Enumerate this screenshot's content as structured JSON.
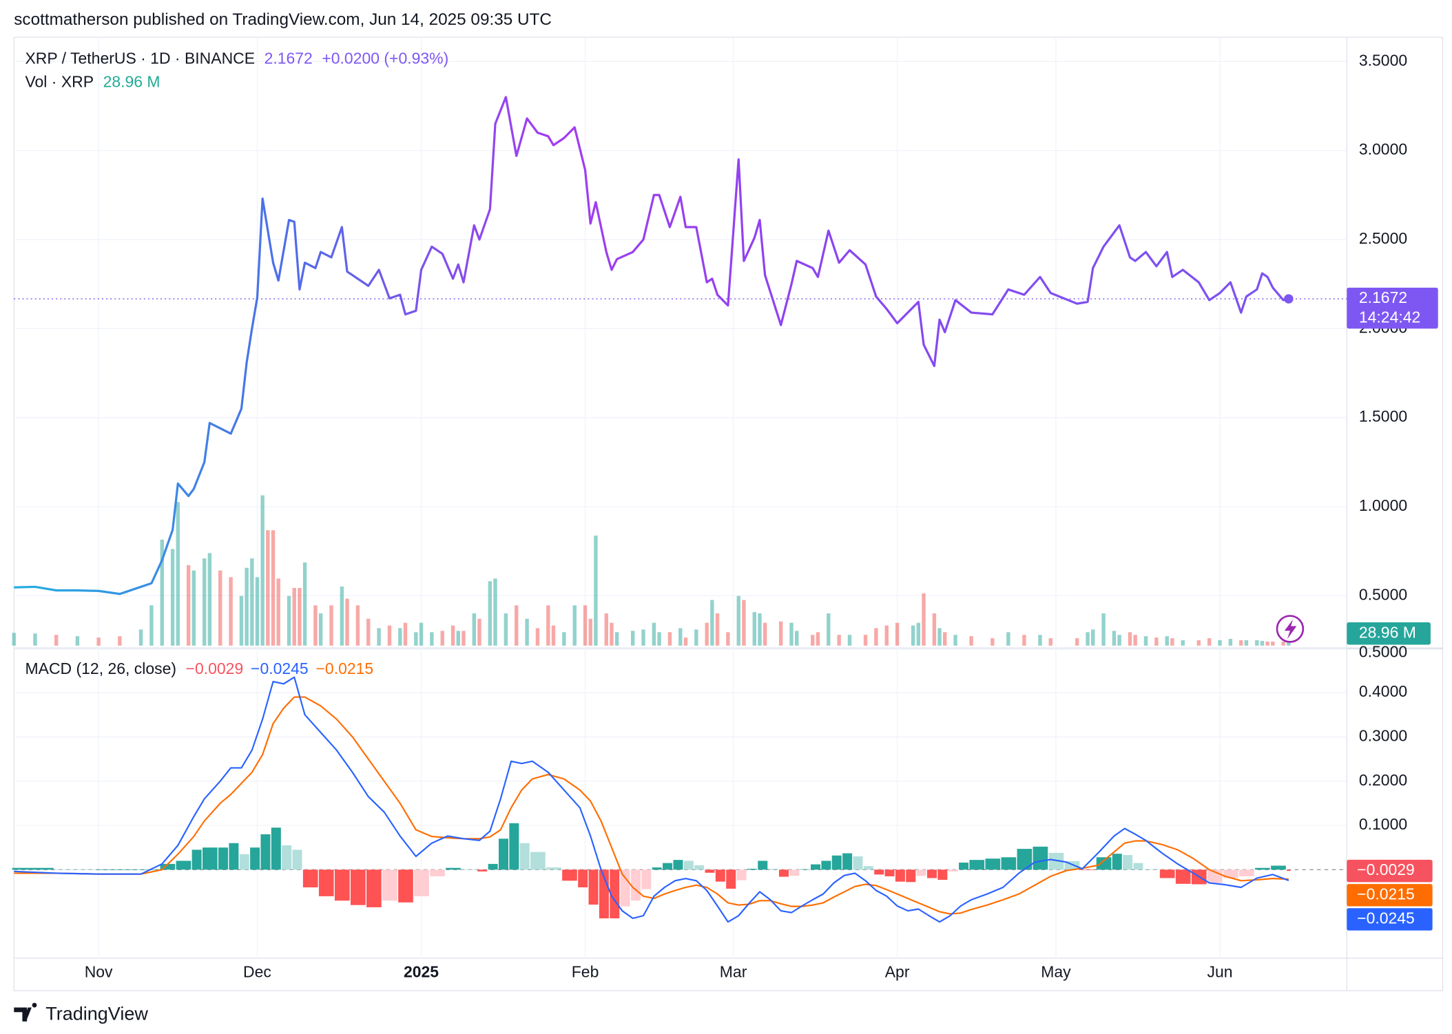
{
  "header": "scottmatherson published on TradingView.com, Jun 14, 2025 09:35 UTC",
  "footer": "TradingView",
  "chart_data": [
    {
      "type": "line",
      "title": "XRP / TetherUS · 1D · BINANCE",
      "last_label": "2.1672",
      "change_label": "+0.0200 (+0.93%)",
      "countdown": "14:24:42",
      "ylim": [
        0.22,
        3.61
      ],
      "yticks": [
        {
          "value": 0.5,
          "label": "0.5000"
        },
        {
          "value": 1,
          "label": "1.0000"
        },
        {
          "value": 1.5,
          "label": "1.5000"
        },
        {
          "value": 2,
          "label": "2.0000"
        },
        {
          "value": 2.5,
          "label": "2.5000"
        },
        {
          "value": 3,
          "label": "3.0000"
        },
        {
          "value": 3.5,
          "label": "3.5000"
        }
      ],
      "grid": true,
      "x": [
        -16,
        -12,
        -8,
        -4,
        0,
        4,
        8,
        10,
        12,
        14,
        15,
        17,
        18,
        20,
        21,
        23,
        25,
        27,
        28,
        29,
        30,
        31,
        32,
        33,
        34,
        36,
        37,
        38,
        39,
        41,
        42,
        44,
        46,
        47,
        49,
        51,
        53,
        55,
        57,
        58,
        60,
        61,
        63,
        65,
        67,
        68,
        69,
        71,
        72,
        74,
        75,
        77,
        79,
        81,
        83,
        85,
        86,
        88,
        90,
        92,
        93,
        94,
        96,
        97,
        98,
        101,
        103,
        105,
        106,
        108,
        110,
        111,
        113,
        115,
        116,
        117,
        119,
        121,
        122,
        124,
        125,
        126,
        129,
        131,
        132,
        135,
        136,
        138,
        140,
        142,
        145,
        147,
        149,
        151,
        154,
        155,
        156,
        158,
        159,
        160,
        162,
        165,
        169,
        172,
        175,
        178,
        180,
        185,
        187,
        188,
        190,
        192,
        193,
        195,
        196,
        198,
        200,
        202,
        203,
        205,
        208,
        210,
        212,
        214,
        216,
        217,
        219,
        220,
        221,
        222,
        224,
        225
      ],
      "series": [
        {
          "colors": [
            "#23aee0",
            "#4d6fe8",
            "#a23cf0",
            "#8c44f0",
            "#7f4ff0",
            "#7b52f2"
          ],
          "values": [
            0.547,
            0.55,
            0.53,
            0.53,
            0.527,
            0.51,
            0.55,
            0.57,
            0.7,
            0.87,
            1.13,
            1.06,
            1.1,
            1.25,
            1.47,
            1.44,
            1.41,
            1.55,
            1.81,
            2.0,
            2.175,
            2.73,
            2.55,
            2.37,
            2.27,
            2.61,
            2.6,
            2.22,
            2.37,
            2.34,
            2.43,
            2.4,
            2.57,
            2.32,
            2.28,
            2.24,
            2.33,
            2.17,
            2.19,
            2.08,
            2.1,
            2.33,
            2.46,
            2.42,
            2.28,
            2.36,
            2.26,
            2.58,
            2.5,
            2.67,
            3.15,
            3.3,
            2.97,
            3.18,
            3.1,
            3.08,
            3.03,
            3.07,
            3.13,
            2.89,
            2.59,
            2.71,
            2.43,
            2.33,
            2.39,
            2.43,
            2.5,
            2.75,
            2.75,
            2.57,
            2.74,
            2.57,
            2.57,
            2.26,
            2.28,
            2.19,
            2.13,
            2.95,
            2.38,
            2.51,
            2.61,
            2.3,
            2.02,
            2.25,
            2.38,
            2.34,
            2.29,
            2.55,
            2.37,
            2.44,
            2.36,
            2.18,
            2.11,
            2.03,
            2.12,
            2.15,
            1.91,
            1.79,
            2.05,
            1.98,
            2.16,
            2.09,
            2.08,
            2.22,
            2.19,
            2.29,
            2.2,
            2.14,
            2.15,
            2.34,
            2.46,
            2.54,
            2.58,
            2.4,
            2.38,
            2.43,
            2.35,
            2.43,
            2.29,
            2.33,
            2.26,
            2.16,
            2.2,
            2.26,
            2.09,
            2.18,
            2.22,
            2.31,
            2.29,
            2.23,
            2.16,
            2.1672
          ]
        }
      ],
      "volume": {
        "name": "Vol · XRP",
        "value_label": "28.96 M",
        "color_up": "#26a69a",
        "color_down": "#ef5350",
        "ylim": [
          0,
          4500
        ],
        "values": [
          95,
          90,
          80,
          70,
          60,
          70,
          120,
          300,
          790,
          720,
          1070,
          600,
          560,
          650,
          690,
          560,
          510,
          370,
          580,
          650,
          510,
          1120,
          860,
          860,
          500,
          370,
          430,
          430,
          620,
          300,
          240,
          300,
          440,
          350,
          300,
          200,
          130,
          150,
          130,
          170,
          100,
          170,
          100,
          110,
          150,
          110,
          110,
          240,
          200,
          480,
          500,
          240,
          300,
          200,
          130,
          300,
          150,
          100,
          300,
          300,
          200,
          820,
          240,
          170,
          100,
          110,
          120,
          170,
          100,
          100,
          130,
          60,
          120,
          170,
          340,
          240,
          100,
          370,
          340,
          250,
          240,
          170,
          180,
          170,
          110,
          80,
          100,
          240,
          80,
          80,
          80,
          130,
          150,
          170,
          150,
          170,
          390,
          240,
          130,
          100,
          80,
          70,
          55,
          100,
          80,
          80,
          55,
          55,
          100,
          120,
          240,
          110,
          80,
          100,
          80,
          70,
          60,
          70,
          55,
          40,
          40,
          55,
          40,
          50,
          40,
          40,
          40,
          35,
          30,
          30,
          30,
          28.96
        ]
      }
    },
    {
      "type": "macd",
      "title": "MACD (12, 26, close)",
      "xlim": [
        -16,
        236
      ],
      "xticks": [
        {
          "value": 0,
          "label": "Nov"
        },
        {
          "value": 30,
          "label": "Dec"
        },
        {
          "value": 61,
          "label": "2025"
        },
        {
          "value": 92,
          "label": "Feb"
        },
        {
          "value": 120,
          "label": "Mar"
        },
        {
          "value": 151,
          "label": "Apr"
        },
        {
          "value": 181,
          "label": "May"
        },
        {
          "value": 212,
          "label": "Jun"
        }
      ],
      "ylim": [
        -0.2,
        0.5
      ],
      "yticks": [
        {
          "value": 0.1,
          "label": "0.1000"
        },
        {
          "value": 0.2,
          "label": "0.2000"
        },
        {
          "value": 0.3,
          "label": "0.3000"
        },
        {
          "value": 0.4,
          "label": "0.4000"
        },
        {
          "value": 0.5,
          "label": "0.5000"
        }
      ],
      "grid": true,
      "x": [
        -16,
        -8,
        0,
        8,
        12,
        15,
        18,
        20,
        23,
        25,
        27,
        29,
        31,
        33,
        35,
        37,
        39,
        42,
        45,
        48,
        51,
        54,
        57,
        60,
        63,
        66,
        69,
        72,
        74,
        76,
        78,
        80,
        82,
        85,
        88,
        91,
        93,
        95,
        97,
        99,
        101,
        103,
        105,
        107,
        109,
        111,
        113,
        115,
        117,
        119,
        121,
        123,
        125,
        127,
        129,
        131,
        133,
        135,
        137,
        139,
        141,
        143,
        145,
        147,
        149,
        151,
        153,
        155,
        157,
        159,
        161,
        163,
        165,
        168,
        171,
        174,
        177,
        180,
        183,
        186,
        189,
        192,
        194,
        196,
        198,
        201,
        204,
        207,
        210,
        213,
        216,
        219,
        222,
        225
      ],
      "histogram": {
        "value_label": "−0.0029",
        "color": "#f7525f",
        "colors": [
          "#26a69a",
          "#b2dfdb",
          "#ff5252",
          "#ffcdd2"
        ],
        "values": [
          0.004,
          0.0,
          0.0,
          0.0,
          0.013,
          0.02,
          0.045,
          0.05,
          0.05,
          0.06,
          0.035,
          0.05,
          0.08,
          0.095,
          0.055,
          0.045,
          -0.04,
          -0.06,
          -0.07,
          -0.08,
          -0.085,
          -0.07,
          -0.074,
          -0.06,
          -0.015,
          0.004,
          0.0,
          -0.004,
          0.013,
          0.07,
          0.105,
          0.06,
          0.04,
          0.005,
          -0.025,
          -0.04,
          -0.079,
          -0.11,
          -0.11,
          -0.083,
          -0.07,
          -0.044,
          0.005,
          0.015,
          0.022,
          0.02,
          0.01,
          -0.007,
          -0.027,
          -0.043,
          -0.024,
          0.002,
          0.02,
          0.002,
          -0.016,
          -0.014,
          0.001,
          0.012,
          0.02,
          0.032,
          0.037,
          0.03,
          0.008,
          -0.011,
          -0.015,
          -0.027,
          -0.028,
          -0.014,
          -0.019,
          -0.023,
          -0.004,
          0.016,
          0.022,
          0.025,
          0.028,
          0.047,
          0.052,
          0.038,
          0.019,
          -0.001,
          0.028,
          0.036,
          0.033,
          0.015,
          0.001,
          -0.019,
          -0.032,
          -0.033,
          -0.03,
          -0.019,
          -0.015,
          0.004,
          0.009,
          -0.0029
        ]
      },
      "macd": {
        "value_label": "−0.0245",
        "color": "#2962ff",
        "values": [
          -0.004,
          -0.008,
          -0.01,
          -0.01,
          0.013,
          0.055,
          0.12,
          0.16,
          0.2,
          0.23,
          0.23,
          0.27,
          0.34,
          0.425,
          0.42,
          0.435,
          0.35,
          0.31,
          0.27,
          0.22,
          0.165,
          0.13,
          0.076,
          0.03,
          0.06,
          0.076,
          0.07,
          0.066,
          0.087,
          0.16,
          0.245,
          0.24,
          0.245,
          0.22,
          0.18,
          0.14,
          0.076,
          0.0,
          -0.06,
          -0.093,
          -0.11,
          -0.104,
          -0.06,
          -0.04,
          -0.025,
          -0.02,
          -0.025,
          -0.047,
          -0.082,
          -0.118,
          -0.104,
          -0.076,
          -0.05,
          -0.068,
          -0.093,
          -0.097,
          -0.082,
          -0.068,
          -0.055,
          -0.03,
          -0.013,
          -0.008,
          -0.025,
          -0.047,
          -0.06,
          -0.082,
          -0.093,
          -0.089,
          -0.104,
          -0.118,
          -0.104,
          -0.082,
          -0.068,
          -0.055,
          -0.04,
          -0.008,
          0.017,
          0.023,
          0.017,
          0.002,
          0.038,
          0.076,
          0.093,
          0.08,
          0.066,
          0.038,
          0.013,
          -0.008,
          -0.03,
          -0.034,
          -0.04,
          -0.019,
          -0.011,
          -0.0245
        ]
      },
      "signal": {
        "value_label": "−0.0215",
        "color": "#ff6d00",
        "values": [
          -0.008,
          -0.008,
          -0.01,
          -0.01,
          0.0,
          0.035,
          0.075,
          0.11,
          0.15,
          0.17,
          0.195,
          0.22,
          0.26,
          0.33,
          0.365,
          0.39,
          0.39,
          0.37,
          0.34,
          0.3,
          0.25,
          0.2,
          0.15,
          0.09,
          0.075,
          0.072,
          0.07,
          0.07,
          0.074,
          0.09,
          0.14,
          0.18,
          0.205,
          0.215,
          0.205,
          0.18,
          0.155,
          0.11,
          0.05,
          -0.01,
          -0.04,
          -0.06,
          -0.065,
          -0.055,
          -0.047,
          -0.04,
          -0.035,
          -0.04,
          -0.055,
          -0.075,
          -0.08,
          -0.078,
          -0.07,
          -0.07,
          -0.077,
          -0.083,
          -0.083,
          -0.08,
          -0.075,
          -0.062,
          -0.05,
          -0.038,
          -0.033,
          -0.036,
          -0.045,
          -0.055,
          -0.065,
          -0.075,
          -0.085,
          -0.095,
          -0.1,
          -0.098,
          -0.09,
          -0.08,
          -0.068,
          -0.055,
          -0.035,
          -0.015,
          -0.002,
          0.003,
          0.01,
          0.04,
          0.06,
          0.065,
          0.065,
          0.057,
          0.045,
          0.025,
          0.0,
          -0.015,
          -0.025,
          -0.023,
          -0.02,
          -0.0215
        ]
      }
    }
  ]
}
